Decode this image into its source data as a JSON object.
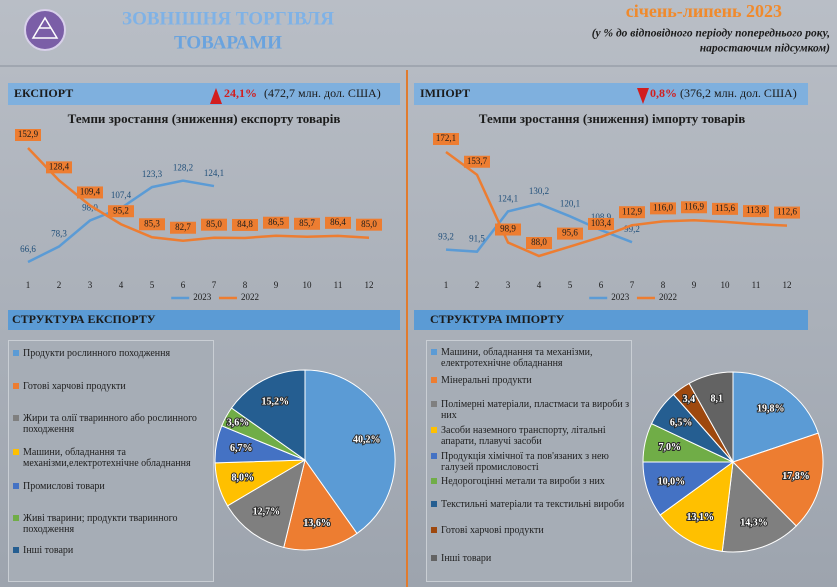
{
  "header": {
    "title_line1": "ЗОВНІШНЯ ТОРГІВЛЯ",
    "title_line2": "ТОВАРАМИ",
    "period": "січень-липень 2023",
    "note_line1": "(у % до відповідного періоду попереднього року,",
    "note_line2": "наростаючим підсумком)"
  },
  "export_summary": {
    "label": "ЕКСПОРТ",
    "change": "24,1%",
    "amount": "(472,7 млн. дол. США)"
  },
  "import_summary": {
    "label": "ІМПОРТ",
    "change": "0,8%",
    "amount": "(376,2 млн. дол. США)"
  },
  "chart_data": [
    {
      "type": "line",
      "title": "Темпи зростання (зниження) експорту товарів",
      "categories": [
        1,
        2,
        3,
        4,
        5,
        6,
        7,
        8,
        9,
        10,
        11,
        12
      ],
      "series": [
        {
          "name": "2023",
          "color": "#5b9bd5",
          "values": [
            66.6,
            78.3,
            98.0,
            107.4,
            123.3,
            128.2,
            124.1,
            null,
            null,
            null,
            null,
            null
          ],
          "value_labels": [
            "66,6",
            "78,3",
            "98,0",
            "107,4",
            "123,3",
            "128,2",
            "124,1",
            null,
            null,
            null,
            null,
            null
          ]
        },
        {
          "name": "2022",
          "color": "#ed7d31",
          "values": [
            152.9,
            128.4,
            109.4,
            95.2,
            85.3,
            82.7,
            85.0,
            84.8,
            86.5,
            85.7,
            86.4,
            85.0
          ],
          "value_labels": [
            "152,9",
            "128,4",
            "109,4",
            "95,2",
            "85,3",
            "82,7",
            "85,0",
            "84,8",
            "86,5",
            "85,7",
            "86,4",
            "85,0"
          ]
        }
      ]
    },
    {
      "type": "line",
      "title": "Темпи зростання (зниження) імпорту товарів",
      "categories": [
        1,
        2,
        3,
        4,
        5,
        6,
        7,
        8,
        9,
        10,
        11,
        12
      ],
      "series": [
        {
          "name": "2023",
          "color": "#5b9bd5",
          "values": [
            93.2,
            91.5,
            124.1,
            130.2,
            120.1,
            108.9,
            99.2,
            null,
            null,
            null,
            null,
            null
          ],
          "value_labels": [
            "93,2",
            "91,5",
            "124,1",
            "130,2",
            "120,1",
            "108,9",
            "99,2",
            null,
            null,
            null,
            null,
            null
          ]
        },
        {
          "name": "2022",
          "color": "#ed7d31",
          "values": [
            172.1,
            153.7,
            98.9,
            88.0,
            95.6,
            103.4,
            112.9,
            116.0,
            116.9,
            115.6,
            113.8,
            112.6
          ],
          "value_labels": [
            "172,1",
            "153,7",
            "98,9",
            "88,0",
            "95,6",
            "103,4",
            "112,9",
            "116,0",
            "116,9",
            "115,6",
            "113,8",
            "112,6"
          ]
        }
      ]
    },
    {
      "type": "pie",
      "title": "СТРУКТУРА ЕКСПОРТУ",
      "categories": [
        "Продукти рослинного походження",
        "Готові харчові продукти",
        "Жири та олії тваринного або рослинного походження",
        "Машини, обладнання та механізми,електротехнічне обладнання",
        "Промислові товари",
        "Живі тварини; продукти тваринного походження",
        "Інші товари"
      ],
      "values": [
        40.2,
        13.6,
        12.7,
        8.0,
        6.7,
        3.6,
        15.2
      ],
      "value_labels": [
        "40,2%",
        "13,6%",
        "12,7%",
        "8,0%",
        "6,7%",
        "3,6%",
        "15,2%"
      ],
      "colors": [
        "#5b9bd5",
        "#ed7d31",
        "#7f7f7f",
        "#ffc000",
        "#4472c4",
        "#70ad47",
        "#255e91"
      ]
    },
    {
      "type": "pie",
      "title": "СТРУКТУРА  ІМПОРТУ",
      "categories": [
        "Машини, обладнання та механізми, електротехнічне обладнання",
        "Мінеральні продукти",
        "Полімерні матеріали, пластмаси та вироби з них",
        "Засоби наземного транспорту, літальні апарати, плавучі засоби",
        "Продукція хімічної та пов'язаних з нею галузей промисловості",
        "Недорогоцінні метали та вироби з них",
        "Текстильні матеріали та текстильні вироби",
        "Готові харчові продукти",
        "Інші товари"
      ],
      "values": [
        19.8,
        17.8,
        14.3,
        13.1,
        10.0,
        7.0,
        6.5,
        3.4,
        8.1
      ],
      "value_labels": [
        "19,8%",
        "17,8%",
        "14,3%",
        "13,1%",
        "10,0%",
        "7,0%",
        "6,5%",
        "3,4",
        "8,1"
      ],
      "colors": [
        "#5b9bd5",
        "#ed7d31",
        "#7f7f7f",
        "#ffc000",
        "#4472c4",
        "#70ad47",
        "#255e91",
        "#9e480e",
        "#636363"
      ]
    }
  ]
}
